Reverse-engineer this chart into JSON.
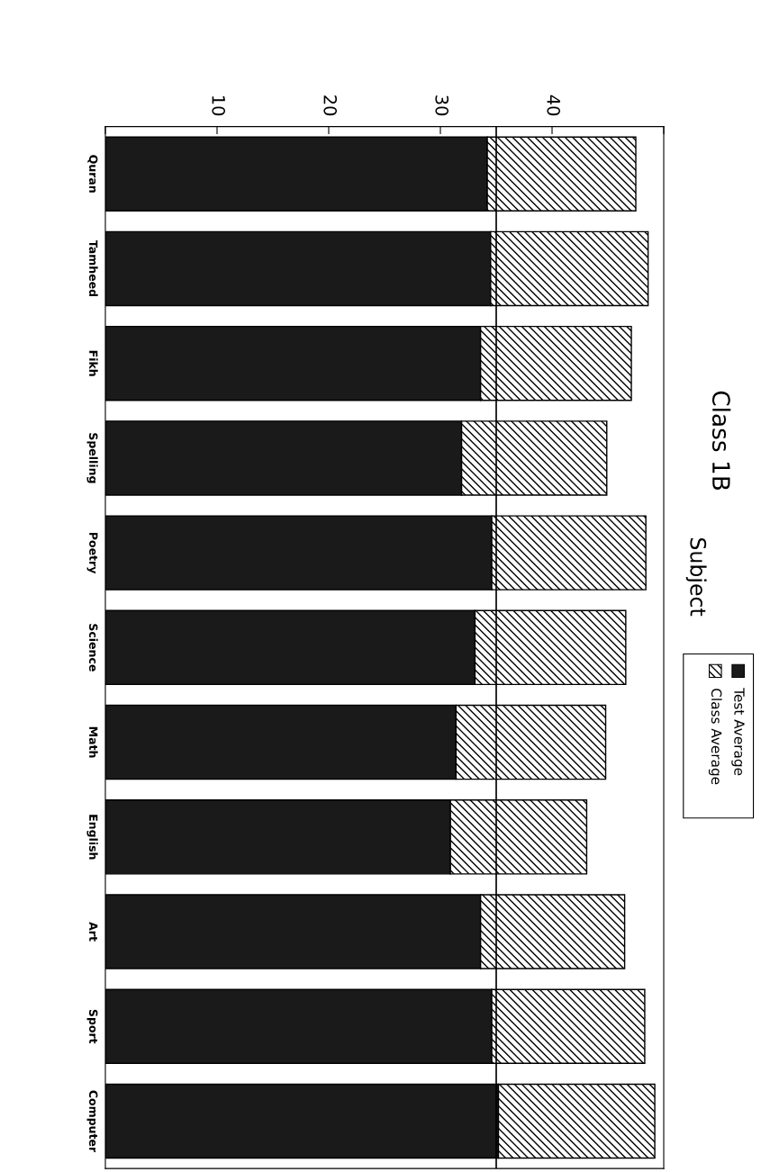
{
  "chart_data": {
    "type": "bar",
    "title": "Class 1B",
    "ylabel": "Subject",
    "orientation": "horizontal",
    "stacked": true,
    "categories": [
      "Quran",
      "Tamheed",
      "Fikh",
      "Spelling",
      "Poetry",
      "Science",
      "Math",
      "English",
      "Art",
      "Sport",
      "Computer"
    ],
    "series": [
      {
        "name": "Test Average",
        "color": "#1a1a1a",
        "values": [
          34.2,
          34.5,
          33.6,
          31.9,
          34.6,
          33.1,
          31.4,
          30.9,
          33.6,
          34.6,
          35.2
        ]
      },
      {
        "name": "Class Average",
        "color": "#000000",
        "values": [
          13.3,
          14.1,
          13.5,
          13.0,
          13.8,
          13.5,
          13.4,
          12.2,
          12.9,
          13.7,
          14.0
        ]
      }
    ],
    "xlim": [
      0,
      50
    ],
    "xticks": [
      {
        "value": 0,
        "label": null
      },
      10,
      20,
      30,
      40,
      {
        "value": 50,
        "label": null
      }
    ],
    "ref_lines": [
      {
        "axis": "x",
        "value": 35,
        "label": null
      }
    ],
    "legend": "right",
    "grid": false
  }
}
